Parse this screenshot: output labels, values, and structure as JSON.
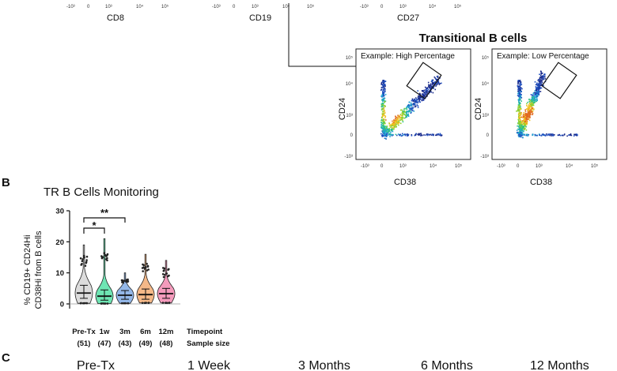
{
  "top_row": {
    "axis_labels": [
      "CD8",
      "CD19",
      "CD27"
    ],
    "tick_labels": [
      "-10³",
      "0",
      "10³",
      "10⁴",
      "10⁵"
    ]
  },
  "transitional": {
    "title": "Transitional B cells",
    "plots": [
      {
        "box_label": "Example: High Percentage",
        "xlabel": "CD38",
        "ylabel": "CD24"
      },
      {
        "box_label": "Example: Low Percentage",
        "xlabel": "CD38",
        "ylabel": "CD24"
      }
    ],
    "y_ticks": [
      "10⁵",
      "10⁴",
      "10³",
      "0",
      "-10³"
    ],
    "x_ticks": [
      "-10³",
      "0",
      "10³",
      "10⁴",
      "10⁵"
    ]
  },
  "panel_b": {
    "letter": "B",
    "title": "TR B Cells Monitoring",
    "ylabel_line1": "% CD19+ CD24Hi",
    "ylabel_line2": "CD38Hi from B cells",
    "timepoint_label": "Timepoint",
    "sample_size_label": "Sample size",
    "sig1": "**",
    "sig2": "*"
  },
  "panel_c": {
    "letter": "C",
    "labels": [
      "Pre-Tx",
      "1 Week",
      "3 Months",
      "6 Months",
      "12 Months"
    ]
  },
  "chart_data": {
    "type": "violin",
    "categories": [
      "Pre-Tx",
      "1w",
      "3m",
      "6m",
      "12m"
    ],
    "sample_sizes": [
      "(51)",
      "(47)",
      "(43)",
      "(49)",
      "(48)"
    ],
    "median": [
      3.5,
      2.5,
      2.8,
      3.0,
      3.3
    ],
    "q1": [
      1.8,
      1.2,
      1.5,
      1.5,
      1.8
    ],
    "q3": [
      6.0,
      4.5,
      4.3,
      4.8,
      5.0
    ],
    "min": [
      0.2,
      0.1,
      0.2,
      0.3,
      0.3
    ],
    "max": [
      19,
      21,
      10,
      16,
      14
    ],
    "colors": [
      "#d0d0d0",
      "#3ddc9a",
      "#6f9fe0",
      "#f0a060",
      "#f07aa5"
    ],
    "yticks": [
      0,
      10,
      20,
      30
    ],
    "ylim": [
      0,
      30
    ]
  }
}
